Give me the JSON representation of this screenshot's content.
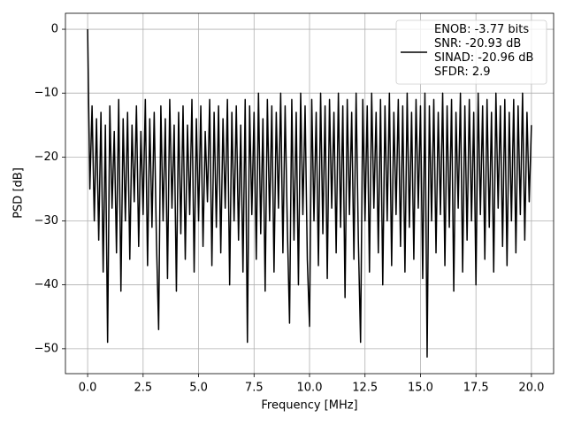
{
  "chart_data": {
    "type": "line",
    "xlabel": "Frequency [MHz]",
    "ylabel": "PSD [dB]",
    "xlim": [
      -1,
      21
    ],
    "ylim": [
      -53.9,
      2.5
    ],
    "xticks": [
      {
        "value": 0,
        "label": "0.0"
      },
      {
        "value": 2.5,
        "label": "2.5"
      },
      {
        "value": 5,
        "label": "5.0"
      },
      {
        "value": 7.5,
        "label": "7.5"
      },
      {
        "value": 10,
        "label": "10.0"
      },
      {
        "value": 12.5,
        "label": "12.5"
      },
      {
        "value": 15,
        "label": "15.0"
      },
      {
        "value": 17.5,
        "label": "17.5"
      },
      {
        "value": 20,
        "label": "20.0"
      }
    ],
    "yticks": [
      {
        "value": -50,
        "label": "−50"
      },
      {
        "value": -40,
        "label": "−40"
      },
      {
        "value": -30,
        "label": "−30"
      },
      {
        "value": -20,
        "label": "−20"
      },
      {
        "value": -10,
        "label": "−10"
      },
      0
    ],
    "grid": true,
    "legend": "upper right",
    "x": [
      0,
      0.1,
      0.2,
      0.3,
      0.4,
      0.5,
      0.6,
      0.7,
      0.8,
      0.9,
      1,
      1.1,
      1.2,
      1.3,
      1.4,
      1.5,
      1.6,
      1.7,
      1.8,
      1.9,
      2,
      2.1,
      2.2,
      2.3,
      2.4,
      2.5,
      2.6,
      2.7,
      2.8,
      2.9,
      3,
      3.1,
      3.2,
      3.3,
      3.4,
      3.5,
      3.6,
      3.7,
      3.8,
      3.9,
      4,
      4.1,
      4.2,
      4.3,
      4.4,
      4.5,
      4.6,
      4.7,
      4.8,
      4.9,
      5,
      5.1,
      5.2,
      5.3,
      5.4,
      5.5,
      5.6,
      5.7,
      5.8,
      5.9,
      6,
      6.1,
      6.2,
      6.3,
      6.4,
      6.5,
      6.6,
      6.7,
      6.8,
      6.9,
      7,
      7.1,
      7.2,
      7.3,
      7.4,
      7.5,
      7.6,
      7.7,
      7.8,
      7.9,
      8,
      8.1,
      8.2,
      8.3,
      8.4,
      8.5,
      8.6,
      8.7,
      8.8,
      8.9,
      9,
      9.1,
      9.2,
      9.3,
      9.4,
      9.5,
      9.6,
      9.7,
      9.8,
      9.9,
      10,
      10.1,
      10.2,
      10.3,
      10.4,
      10.5,
      10.6,
      10.7,
      10.8,
      10.9,
      11,
      11.1,
      11.2,
      11.3,
      11.4,
      11.5,
      11.6,
      11.7,
      11.8,
      11.9,
      12,
      12.1,
      12.2,
      12.3,
      12.4,
      12.5,
      12.6,
      12.7,
      12.8,
      12.9,
      13,
      13.1,
      13.2,
      13.3,
      13.4,
      13.5,
      13.6,
      13.7,
      13.8,
      13.9,
      14,
      14.1,
      14.2,
      14.3,
      14.4,
      14.5,
      14.6,
      14.7,
      14.8,
      14.9,
      15,
      15.1,
      15.2,
      15.3,
      15.4,
      15.5,
      15.6,
      15.7,
      15.8,
      15.9,
      16,
      16.1,
      16.2,
      16.3,
      16.4,
      16.5,
      16.6,
      16.7,
      16.8,
      16.9,
      17,
      17.1,
      17.2,
      17.3,
      17.4,
      17.5,
      17.6,
      17.7,
      17.8,
      17.9,
      18,
      18.1,
      18.2,
      18.3,
      18.4,
      18.5,
      18.6,
      18.7,
      18.8,
      18.9,
      19,
      19.1,
      19.2,
      19.3,
      19.4,
      19.5,
      19.6,
      19.7,
      19.8,
      19.9,
      20
    ],
    "series": [
      {
        "name": "ENOB: -3.77 bits\nSNR: -20.93 dB\nSINAD: -20.96 dB\nSFDR: 2.9",
        "color": "#000000",
        "values": [
          0,
          -25,
          -12,
          -30,
          -14,
          -33,
          -13,
          -38,
          -15,
          -49,
          -12,
          -28,
          -16,
          -35,
          -11,
          -41,
          -14,
          -30,
          -13,
          -36,
          -15,
          -27,
          -12,
          -34,
          -16,
          -29,
          -11,
          -37,
          -14,
          -31,
          -13,
          -33,
          -47,
          -12,
          -30,
          -14,
          -39,
          -11,
          -28,
          -15,
          -41,
          -13,
          -32,
          -12,
          -36,
          -15,
          -29,
          -11,
          -38,
          -14,
          -30,
          -12,
          -34,
          -16,
          -27,
          -11,
          -37,
          -13,
          -31,
          -12,
          -35,
          -14,
          -28,
          -11,
          -40,
          -13,
          -30,
          -12,
          -33,
          -15,
          -38,
          -11,
          -49,
          -12,
          -29,
          -13,
          -36,
          -10,
          -32,
          -14,
          -41,
          -11,
          -30,
          -12,
          -38,
          -13,
          -28,
          -10,
          -35,
          -12,
          -31,
          -46,
          -11,
          -33,
          -13,
          -40,
          -10,
          -29,
          -12,
          -36,
          -46.5,
          -11,
          -30,
          -13,
          -37,
          -10,
          -32,
          -12,
          -39,
          -11,
          -28,
          -13,
          -35,
          -10,
          -31,
          -12,
          -42,
          -11,
          -29,
          -13,
          -36,
          -10,
          -33,
          -49,
          -11,
          -30,
          -12,
          -38,
          -10,
          -28,
          -13,
          -35,
          -11,
          -40,
          -12,
          -30,
          -10,
          -37,
          -13,
          -29,
          -11,
          -34,
          -12,
          -38,
          -10,
          -31,
          -13,
          -36,
          -11,
          -28,
          -12,
          -39,
          -10,
          -51.3,
          -12,
          -30,
          -11,
          -35,
          -13,
          -29,
          -10,
          -37,
          -12,
          -31,
          -11,
          -41,
          -13,
          -28,
          -10,
          -38,
          -12,
          -33,
          -11,
          -30,
          -13,
          -40,
          -10,
          -29,
          -12,
          -36,
          -11,
          -31,
          -13,
          -38,
          -10,
          -28,
          -12,
          -34,
          -11,
          -37,
          -13,
          -30,
          -11,
          -35,
          -12,
          -29,
          -10,
          -33,
          -13,
          -27,
          -15
        ]
      }
    ]
  }
}
